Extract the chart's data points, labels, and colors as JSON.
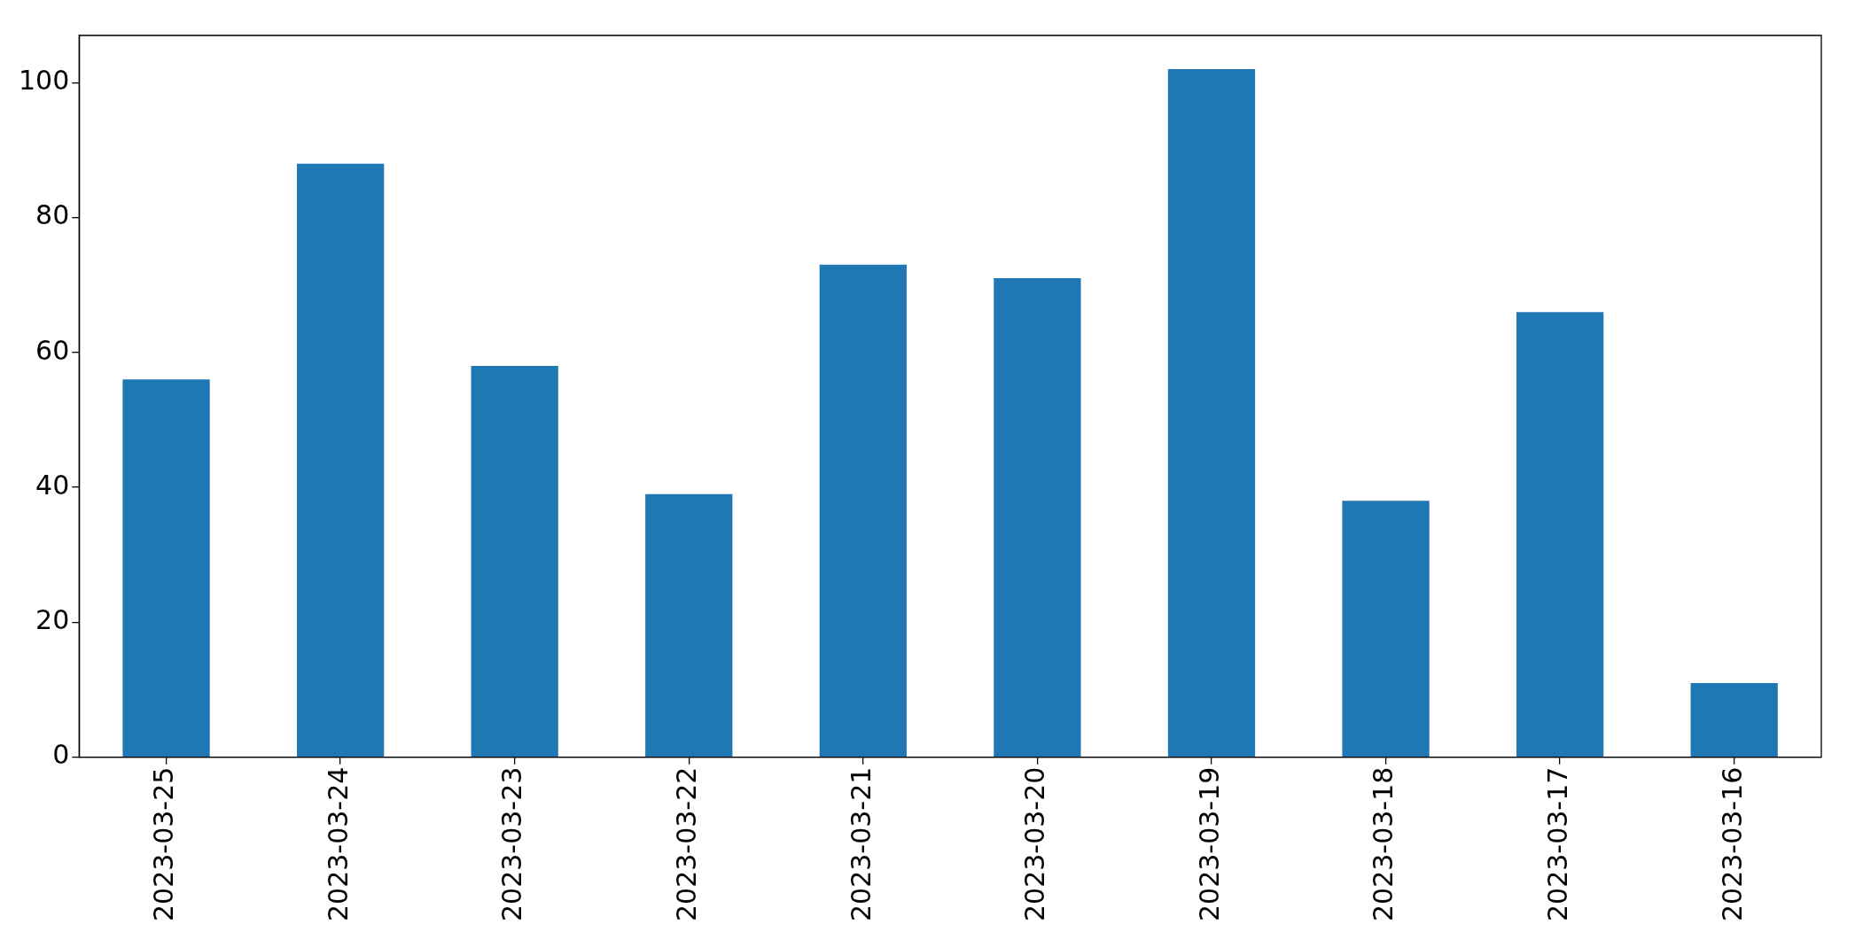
{
  "chart_data": {
    "type": "bar",
    "categories": [
      "2023-03-25",
      "2023-03-24",
      "2023-03-23",
      "2023-03-22",
      "2023-03-21",
      "2023-03-20",
      "2023-03-19",
      "2023-03-18",
      "2023-03-17",
      "2023-03-16"
    ],
    "values": [
      56,
      88,
      58,
      39,
      73,
      71,
      102,
      38,
      66,
      11
    ],
    "color": "#1f77b4",
    "ylim": [
      0,
      107
    ],
    "yticks": [
      0,
      20,
      40,
      60,
      80,
      100
    ]
  }
}
